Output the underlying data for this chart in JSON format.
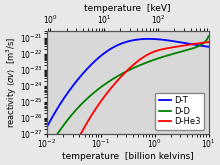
{
  "title_top": "temperature  [keV]",
  "title_bottom": "temperature  [billion kelvins]",
  "ylabel": "reactivity $\\langle\\sigma v\\rangle$  [m$^3$/s]",
  "xlim_bk": [
    0.01,
    10
  ],
  "ylim": [
    1e-27,
    3e-21
  ],
  "legend": [
    "D-T",
    "D-D",
    "D-He3"
  ],
  "colors": [
    "blue",
    "green",
    "red"
  ],
  "bg_color": "#d8d8d8",
  "fig_color": "#e8e8e8",
  "kB_keV_per_GK": 86.17,
  "lw": 1.3,
  "xlabel_fontsize": 6.5,
  "ylabel_fontsize": 6.0,
  "tick_fontsize": 5.5,
  "legend_fontsize": 6.0
}
